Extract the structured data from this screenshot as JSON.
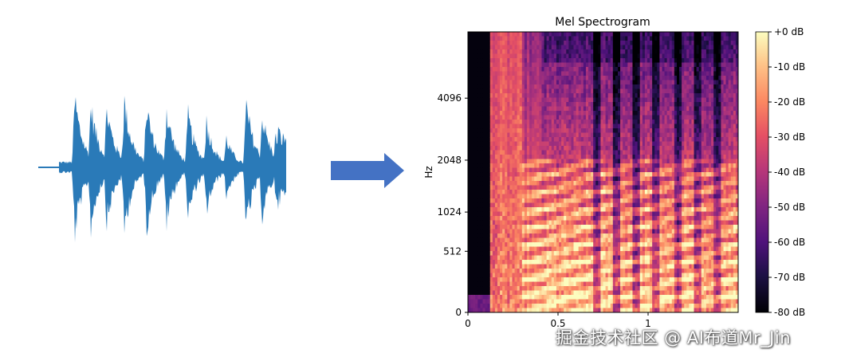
{
  "waveform": {
    "icon": "audio-waveform",
    "color": "#2a7ab8"
  },
  "arrow": {
    "icon": "arrow-right-icon",
    "color": "#4472c4"
  },
  "chart_data": {
    "type": "heatmap",
    "title": "Mel Spectrogram",
    "xlabel": "",
    "ylabel": "Hz",
    "x_ticks": [
      {
        "value": 0,
        "label": "0"
      },
      {
        "value": 0.5,
        "label": "0.5"
      },
      {
        "value": 1,
        "label": "1"
      }
    ],
    "xlim": [
      0,
      1.5
    ],
    "y_ticks": [
      {
        "value": 0,
        "label": "0"
      },
      {
        "value": 512,
        "label": "512"
      },
      {
        "value": 1024,
        "label": "1024"
      },
      {
        "value": 2048,
        "label": "2048"
      },
      {
        "value": 4096,
        "label": "4096"
      }
    ],
    "colorbar": {
      "ticks": [
        "+0 dB",
        "-10 dB",
        "-20 dB",
        "-30 dB",
        "-40 dB",
        "-50 dB",
        "-60 dB",
        "-70 dB",
        "-80 dB"
      ],
      "range_db": [
        -80,
        0
      ],
      "colormap": "magma"
    }
  },
  "watermark": "掘金技术社区 @ AI布道Mr_Jin"
}
